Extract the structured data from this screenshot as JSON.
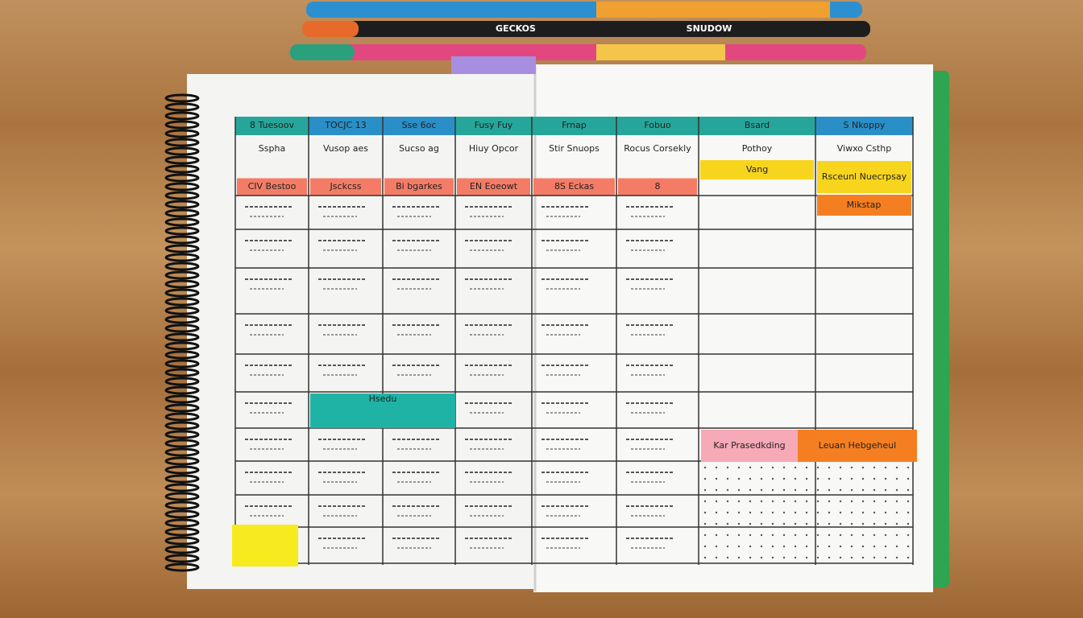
{
  "pens": [
    {
      "label": "GECKOS"
    },
    {
      "label": "SNUDOW"
    }
  ],
  "columns": [
    {
      "header": "8 Tuesoov",
      "note": "Sspha",
      "tag": "CIV Bestoo"
    },
    {
      "header": "TOCJC 13",
      "note": "Vusop aes",
      "tag": "Jsckcss"
    },
    {
      "header": "Sse 6oc",
      "note": "Sucso ag",
      "tag": "Bi bgarkes"
    },
    {
      "header": "Fusy Fuy",
      "note": "Hiuy Opcor",
      "tag": "EN Eoeowt"
    },
    {
      "header": "Frnap",
      "note": "Stir Snuops",
      "tag": "8S Eckas"
    },
    {
      "header": "Fobuo",
      "note": "Rocus Corsekly",
      "tag": "8"
    },
    {
      "header": "Bsard",
      "note": "Pothoy",
      "tag": "Vang"
    },
    {
      "header": "S Nkoppy",
      "note": "Viwxo Csthp",
      "tag": "Rsceunl Nuecrpsay"
    }
  ],
  "extra_tag": "Mikstap",
  "block": "Hsedu",
  "bottom_left": "Kar Prasedkding",
  "bottom_right": "Leuan Hebgeheul"
}
